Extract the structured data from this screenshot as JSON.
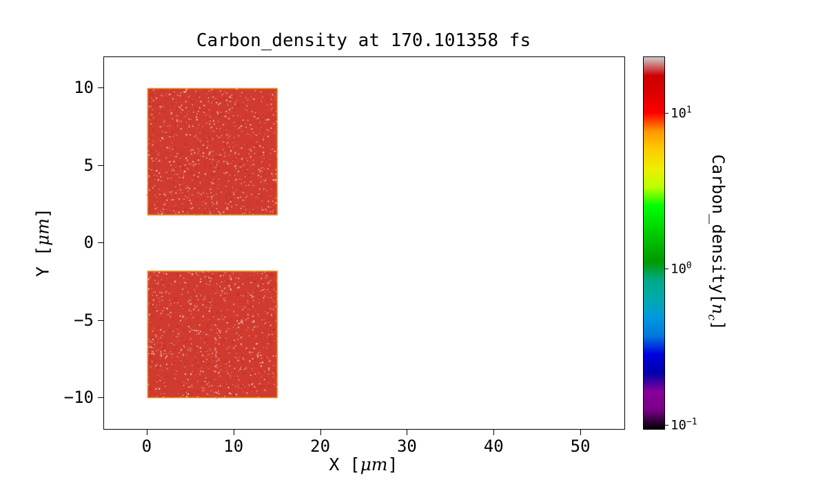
{
  "figure": {
    "background": "#ffffff"
  },
  "chart_data": {
    "type": "heatmap",
    "title": "Carbon_density at 170.101358 fs",
    "xlabel": {
      "pre": "X [",
      "unit": "μm",
      "post": "]"
    },
    "ylabel": {
      "pre": "Y [",
      "unit": "μm",
      "post": "]"
    },
    "xlim": [
      -5,
      55
    ],
    "ylim": [
      -12,
      12
    ],
    "xticks": {
      "values": [
        0,
        10,
        20,
        30,
        40,
        50
      ],
      "labels": [
        "0",
        "10",
        "20",
        "30",
        "40",
        "50"
      ]
    },
    "yticks": {
      "values": [
        10,
        5,
        0,
        -5,
        -10
      ],
      "labels": [
        "10",
        "5",
        "0",
        "−5",
        "−10"
      ]
    },
    "grid": false,
    "regions": [
      {
        "x0": 0,
        "x1": 15,
        "y0": 1.8,
        "y1": 10,
        "approx_value_nc": 10
      },
      {
        "x0": 0,
        "x1": 15,
        "y0": -10,
        "y1": -1.8,
        "approx_value_nc": 10
      }
    ],
    "colors": {
      "region_fill": "#d13a2e",
      "region_mottle": "#b82d23",
      "region_speckle": "#ffffff",
      "region_edge": "#e1930e",
      "axis": "#000000"
    },
    "colorbar": {
      "label": {
        "pre": "Carbon_density[",
        "var": "n",
        "sub": "c",
        "post": "]"
      },
      "scale": "log",
      "vmin": 0.095,
      "vmax": 23,
      "ticks": [
        {
          "value": 10,
          "base": "10",
          "exp": "1"
        },
        {
          "value": 1,
          "base": "10",
          "exp": "0"
        },
        {
          "value": 0.1,
          "base": "10",
          "exp": "−1"
        }
      ],
      "colormap": "nipy_spectral",
      "stops": [
        {
          "p": 0.0,
          "c": "#000000"
        },
        {
          "p": 0.05,
          "c": "#770088"
        },
        {
          "p": 0.1,
          "c": "#880099"
        },
        {
          "p": 0.15,
          "c": "#0000aa"
        },
        {
          "p": 0.2,
          "c": "#0000dd"
        },
        {
          "p": 0.25,
          "c": "#0077dd"
        },
        {
          "p": 0.3,
          "c": "#0099dd"
        },
        {
          "p": 0.35,
          "c": "#00aaaa"
        },
        {
          "p": 0.4,
          "c": "#00aa88"
        },
        {
          "p": 0.45,
          "c": "#009900"
        },
        {
          "p": 0.5,
          "c": "#00bb00"
        },
        {
          "p": 0.55,
          "c": "#00dd00"
        },
        {
          "p": 0.6,
          "c": "#00ff00"
        },
        {
          "p": 0.65,
          "c": "#bbff00"
        },
        {
          "p": 0.7,
          "c": "#eeee00"
        },
        {
          "p": 0.75,
          "c": "#ffcc00"
        },
        {
          "p": 0.8,
          "c": "#ff9900"
        },
        {
          "p": 0.85,
          "c": "#ff0000"
        },
        {
          "p": 0.9,
          "c": "#dd0000"
        },
        {
          "p": 0.95,
          "c": "#cc0000"
        },
        {
          "p": 1.0,
          "c": "#cccccc"
        }
      ]
    }
  }
}
